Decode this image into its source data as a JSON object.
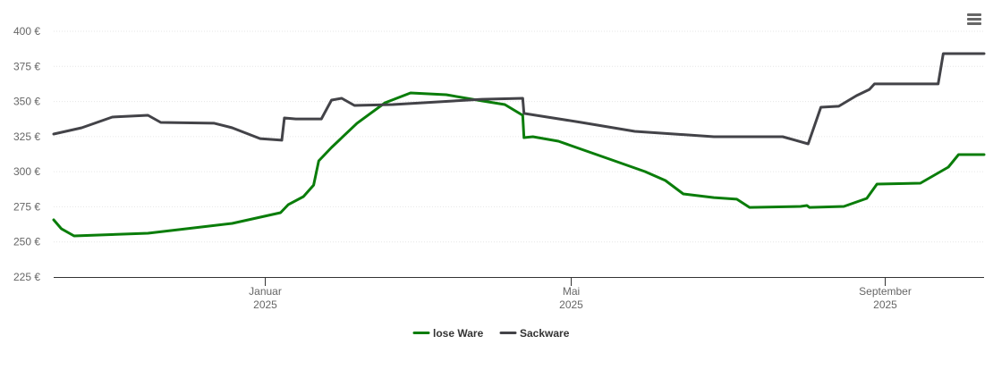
{
  "chart_data": {
    "type": "line",
    "title": "",
    "xlabel": "",
    "ylabel": "",
    "x_unit": "days since 2025-01-01",
    "xlim": [
      -83,
      282
    ],
    "ylim": [
      225,
      400
    ],
    "y_ticks": [
      225,
      250,
      275,
      300,
      325,
      350,
      375,
      400
    ],
    "y_tick_labels": [
      "225 €",
      "250 €",
      "275 €",
      "300 €",
      "325 €",
      "350 €",
      "375 €",
      "400 €"
    ],
    "x_ticks": [
      {
        "x": 0,
        "label": "Januar",
        "year": "2025"
      },
      {
        "x": 120,
        "label": "Mai",
        "year": "2025"
      },
      {
        "x": 243,
        "label": "September",
        "year": "2025"
      }
    ],
    "grid": true,
    "legend_position": "bottom-center",
    "series": [
      {
        "name": "lose Ware",
        "color": "#0a7d0a",
        "points": [
          [
            -83,
            265.7
          ],
          [
            -80,
            259.4
          ],
          [
            -75,
            254.3
          ],
          [
            -46,
            256.2
          ],
          [
            -13,
            263.2
          ],
          [
            6,
            270.8
          ],
          [
            9,
            276.5
          ],
          [
            15,
            282.3
          ],
          [
            19,
            290.5
          ],
          [
            21,
            307.7
          ],
          [
            26,
            317.3
          ],
          [
            36,
            334.5
          ],
          [
            47,
            349.1
          ],
          [
            57,
            356.1
          ],
          [
            71,
            354.8
          ],
          [
            85,
            350.4
          ],
          [
            94,
            347.8
          ],
          [
            101,
            340.2
          ],
          [
            101.5,
            324.3
          ],
          [
            105,
            324.9
          ],
          [
            115,
            321.7
          ],
          [
            135,
            309.0
          ],
          [
            149,
            300.1
          ],
          [
            157,
            293.7
          ],
          [
            164,
            284.2
          ],
          [
            176,
            281.6
          ],
          [
            185,
            280.4
          ],
          [
            190,
            274.6
          ],
          [
            210,
            275.3
          ],
          [
            212.5,
            275.9
          ],
          [
            213.5,
            274.6
          ],
          [
            227,
            275.3
          ],
          [
            236,
            281.0
          ],
          [
            240,
            291.2
          ],
          [
            257,
            291.8
          ],
          [
            268,
            303.3
          ],
          [
            272,
            312.2
          ],
          [
            282,
            312.2
          ]
        ]
      },
      {
        "name": "Sackware",
        "color": "#434348",
        "points": [
          [
            -83,
            326.8
          ],
          [
            -72,
            331.3
          ],
          [
            -60,
            338.9
          ],
          [
            -46,
            340.2
          ],
          [
            -41,
            335.1
          ],
          [
            -20,
            334.5
          ],
          [
            -13,
            331.3
          ],
          [
            -2,
            323.6
          ],
          [
            6.5,
            322.4
          ],
          [
            7.5,
            338.3
          ],
          [
            12,
            337.6
          ],
          [
            22,
            337.6
          ],
          [
            26,
            351.0
          ],
          [
            30,
            352.3
          ],
          [
            35,
            347.2
          ],
          [
            50,
            347.8
          ],
          [
            85,
            351.6
          ],
          [
            101,
            352.3
          ],
          [
            101.5,
            341.5
          ],
          [
            124,
            335.1
          ],
          [
            145,
            328.7
          ],
          [
            176,
            324.9
          ],
          [
            203,
            324.9
          ],
          [
            213,
            319.8
          ],
          [
            218,
            345.9
          ],
          [
            225,
            346.6
          ],
          [
            232,
            354.2
          ],
          [
            237,
            358.6
          ],
          [
            239,
            362.5
          ],
          [
            264,
            362.5
          ],
          [
            266,
            384.1
          ],
          [
            282,
            384.1
          ]
        ]
      }
    ]
  },
  "menu": {
    "icon": "hamburger-menu-icon"
  }
}
